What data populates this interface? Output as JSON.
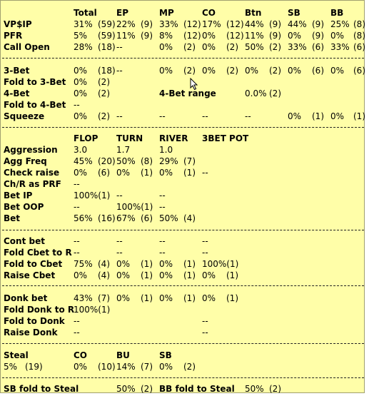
{
  "header": {
    "cols": [
      "Total",
      "EP",
      "MP",
      "CO",
      "Btn",
      "SB",
      "BB"
    ]
  },
  "preflop": [
    {
      "label": "VP$IP",
      "cells": [
        "31%",
        "(59)",
        "22%",
        "(9)",
        "33%",
        "(12)",
        "17%",
        "(12)",
        "44%",
        "(9)",
        "44%",
        "(9)",
        "25%",
        "(8)"
      ]
    },
    {
      "label": "PFR",
      "cells": [
        "5%",
        "(59)",
        "11%",
        "(9)",
        "8%",
        "(12)",
        "0%",
        "(12)",
        "11%",
        "(9)",
        "0%",
        "(9)",
        "0%",
        "(8)"
      ]
    },
    {
      "label": "Call Open",
      "cells": [
        "28%",
        "(18)",
        "--",
        "",
        "0%",
        "(2)",
        "0%",
        "(2)",
        "50%",
        "(2)",
        "33%",
        "(6)",
        "33%",
        "(6)"
      ]
    }
  ],
  "threebet": [
    {
      "label": "3-Bet",
      "cells": [
        "0%",
        "(18)",
        "--",
        "",
        "0%",
        "(2)",
        "0%",
        "(2)",
        "0%",
        "(2)",
        "0%",
        "(6)",
        "0%",
        "(6)"
      ]
    },
    {
      "label": "Fold to 3-Bet",
      "cells": [
        "0%",
        "(2)",
        "",
        "",
        "",
        "",
        "",
        "",
        "",
        "",
        "",
        "",
        "",
        ""
      ]
    },
    {
      "label": "4-Bet",
      "cells": [
        "0%",
        "(2)",
        "",
        "",
        "",
        "",
        "",
        "",
        "",
        "",
        "",
        "",
        "",
        ""
      ]
    },
    {
      "label": "Fold to 4-Bet",
      "cells": [
        "--",
        "",
        "",
        "",
        "",
        "",
        "",
        "",
        "",
        "",
        "",
        "",
        "",
        ""
      ]
    },
    {
      "label": "Squeeze",
      "cells": [
        "0%",
        "(2)",
        "--",
        "",
        "--",
        "",
        "--",
        "",
        "--",
        "",
        "0%",
        "(1)",
        "0%",
        "(1)"
      ]
    }
  ],
  "fourbet_range": {
    "label": "4-Bet range",
    "value": "0.0%",
    "count": "(2)"
  },
  "postflop": {
    "cols": [
      "FLOP",
      "TURN",
      "RIVER",
      "3BET POT"
    ],
    "rows": [
      {
        "label": "Aggression",
        "cells": [
          "3.0",
          "",
          "1.7",
          "",
          "1.0",
          "",
          "",
          ""
        ]
      },
      {
        "label": "Agg Freq",
        "cells": [
          "45%",
          "(20)",
          "50%",
          "(8)",
          "29%",
          "(7)",
          "",
          ""
        ]
      },
      {
        "label": "Check raise",
        "cells": [
          "0%",
          "(6)",
          "0%",
          "(1)",
          "0%",
          "(1)",
          "--",
          ""
        ]
      },
      {
        "label": "Ch/R as PRF",
        "cells": [
          "--",
          "",
          "",
          "",
          "",
          "",
          "",
          ""
        ]
      },
      {
        "label": "Bet IP",
        "cells": [
          "100%(1)",
          "",
          "--",
          "",
          "--",
          "",
          "",
          ""
        ]
      },
      {
        "label": "Bet OOP",
        "cells": [
          "--",
          "",
          "100%(1)",
          "",
          "--",
          "",
          "",
          ""
        ]
      },
      {
        "label": "Bet",
        "cells": [
          "56%",
          "(16)",
          "67%",
          "(6)",
          "50%",
          "(4)",
          "",
          ""
        ]
      }
    ]
  },
  "cbet": [
    {
      "label": "Cont bet",
      "cells": [
        "--",
        "",
        "--",
        "",
        "--",
        "",
        "--",
        ""
      ]
    },
    {
      "label": "Fold Cbet to R",
      "cells": [
        "--",
        "",
        "--",
        "",
        "--",
        "",
        "--",
        ""
      ]
    },
    {
      "label": "Fold to Cbet",
      "cells": [
        "75%",
        "(4)",
        "0%",
        "(1)",
        "0%",
        "(1)",
        "100%(1)",
        ""
      ]
    },
    {
      "label": "Raise Cbet",
      "cells": [
        "0%",
        "(4)",
        "0%",
        "(1)",
        "0%",
        "(1)",
        "0%",
        "(1)"
      ]
    }
  ],
  "donk": [
    {
      "label": "Donk bet",
      "cells": [
        "43%",
        "(7)",
        "0%",
        "(1)",
        "0%",
        "(1)",
        "0%",
        "(1)"
      ]
    },
    {
      "label": "Fold Donk to R",
      "cells": [
        "100%(1)",
        "",
        "",
        "",
        "",
        "",
        "",
        ""
      ]
    },
    {
      "label": "Fold to Donk",
      "cells": [
        "--",
        "",
        "",
        "",
        "",
        "",
        "--",
        ""
      ]
    },
    {
      "label": "Raise Donk",
      "cells": [
        "--",
        "",
        "",
        "",
        "",
        "",
        "--",
        ""
      ]
    }
  ],
  "steal": {
    "label": "Steal",
    "cols": [
      "CO",
      "BU",
      "SB"
    ],
    "value": "5%",
    "count": "(19)",
    "cells": [
      "0%",
      "(10)",
      "14%",
      "(7)",
      "0%",
      "(2)"
    ]
  },
  "footer": {
    "sb_label": "SB fold to Steal",
    "sb_value": "50%",
    "sb_count": "(2)",
    "bb_label": "BB fold to Steal",
    "bb_value": "50%",
    "bb_count": "(2)"
  }
}
